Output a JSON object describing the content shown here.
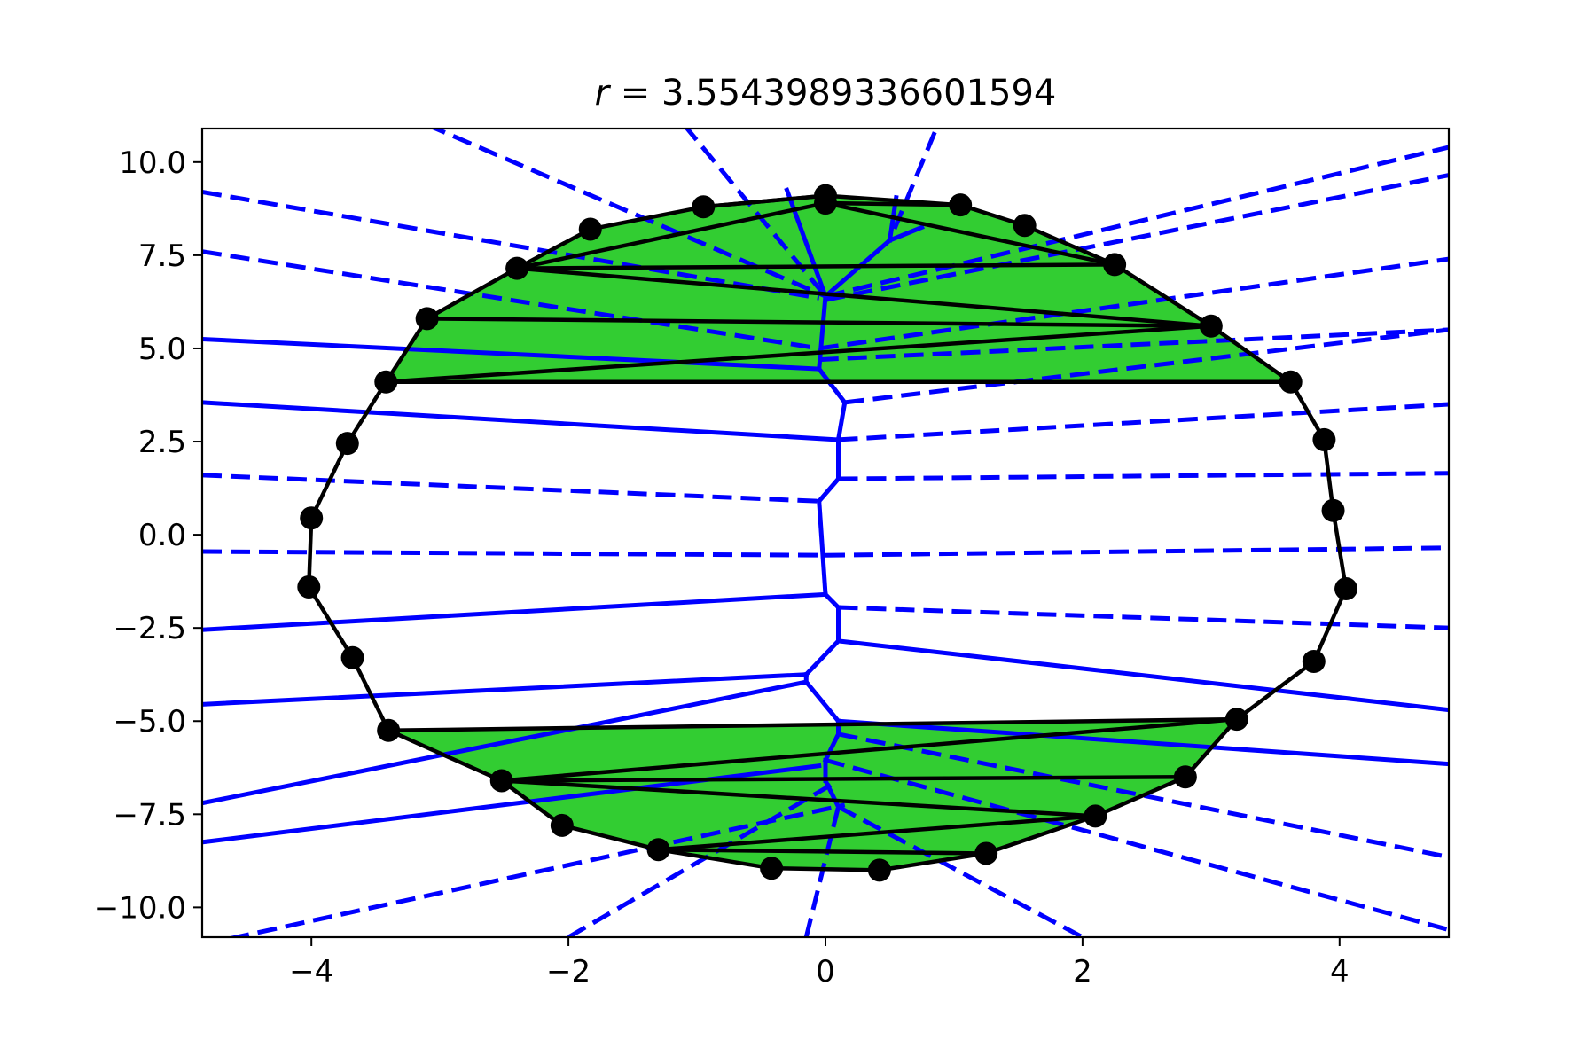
{
  "chart_data": {
    "type": "scatter",
    "title_prefix": "r",
    "title_value": "3.5543989336601594",
    "xlim": [
      -4.85,
      4.85
    ],
    "ylim": [
      -10.8,
      10.9
    ],
    "xticks": [
      -4,
      -2,
      0,
      2,
      4
    ],
    "xtick_labels": [
      "−4",
      "−2",
      "0",
      "2",
      "4"
    ],
    "yticks": [
      10.0,
      7.5,
      5.0,
      2.5,
      0.0,
      -2.5,
      -5.0,
      -7.5,
      -10.0
    ],
    "ytick_labels": [
      "10.0",
      "7.5",
      "5.0",
      "2.5",
      "0.0",
      "−2.5",
      "−5.0",
      "−7.5",
      "−10.0"
    ],
    "grid": false,
    "colors": {
      "points": "#000000",
      "voronoi": "#0000ff",
      "fill": "#32cd32"
    },
    "points": [
      [
        0.0,
        9.1
      ],
      [
        1.05,
        8.85
      ],
      [
        1.55,
        8.3
      ],
      [
        2.25,
        7.25
      ],
      [
        3.0,
        5.6
      ],
      [
        3.62,
        4.1
      ],
      [
        3.88,
        2.55
      ],
      [
        3.95,
        0.65
      ],
      [
        4.05,
        -1.45
      ],
      [
        3.8,
        -3.4
      ],
      [
        3.2,
        -4.95
      ],
      [
        2.8,
        -6.5
      ],
      [
        2.1,
        -7.55
      ],
      [
        1.25,
        -8.55
      ],
      [
        0.42,
        -9.0
      ],
      [
        -0.42,
        -8.95
      ],
      [
        -1.3,
        -8.45
      ],
      [
        -2.05,
        -7.8
      ],
      [
        -2.52,
        -6.6
      ],
      [
        -3.4,
        -5.25
      ],
      [
        -3.68,
        -3.3
      ],
      [
        -4.02,
        -1.4
      ],
      [
        -4.0,
        0.45
      ],
      [
        -3.72,
        2.45
      ],
      [
        -3.42,
        4.1
      ],
      [
        -3.1,
        5.8
      ],
      [
        -2.4,
        7.15
      ],
      [
        -1.83,
        8.2
      ],
      [
        -0.95,
        8.8
      ],
      [
        0.0,
        8.9
      ]
    ],
    "hull": [
      [
        0.0,
        9.1
      ],
      [
        1.05,
        8.85
      ],
      [
        1.55,
        8.3
      ],
      [
        2.25,
        7.25
      ],
      [
        3.0,
        5.6
      ],
      [
        3.62,
        4.1
      ],
      [
        3.88,
        2.55
      ],
      [
        3.95,
        0.65
      ],
      [
        4.05,
        -1.45
      ],
      [
        3.8,
        -3.4
      ],
      [
        3.2,
        -4.95
      ],
      [
        2.8,
        -6.5
      ],
      [
        2.1,
        -7.55
      ],
      [
        1.25,
        -8.55
      ],
      [
        0.42,
        -9.0
      ],
      [
        -0.42,
        -8.95
      ],
      [
        -1.3,
        -8.45
      ],
      [
        -2.05,
        -7.8
      ],
      [
        -2.52,
        -6.6
      ],
      [
        -3.4,
        -5.25
      ],
      [
        -3.68,
        -3.3
      ],
      [
        -4.02,
        -1.4
      ],
      [
        -4.0,
        0.45
      ],
      [
        -3.72,
        2.45
      ],
      [
        -3.42,
        4.1
      ],
      [
        -3.1,
        5.8
      ],
      [
        -2.4,
        7.15
      ],
      [
        -1.83,
        8.2
      ],
      [
        -0.95,
        8.8
      ],
      [
        0.0,
        9.1
      ]
    ],
    "green_regions": [
      [
        [
          -3.42,
          4.1
        ],
        [
          -3.1,
          5.8
        ],
        [
          -2.4,
          7.15
        ],
        [
          -1.83,
          8.2
        ],
        [
          -0.95,
          8.8
        ],
        [
          0.0,
          9.1
        ],
        [
          1.05,
          8.85
        ],
        [
          1.55,
          8.3
        ],
        [
          2.25,
          7.25
        ],
        [
          3.0,
          5.6
        ],
        [
          3.62,
          4.1
        ]
      ],
      [
        [
          -3.4,
          -5.25
        ],
        [
          -2.52,
          -6.6
        ],
        [
          -2.05,
          -7.8
        ],
        [
          -1.3,
          -8.45
        ],
        [
          -0.42,
          -8.95
        ],
        [
          0.42,
          -9.0
        ],
        [
          1.25,
          -8.55
        ],
        [
          2.1,
          -7.55
        ],
        [
          2.8,
          -6.5
        ],
        [
          3.2,
          -4.95
        ]
      ]
    ],
    "black_segments": [
      [
        [
          -3.42,
          4.1
        ],
        [
          3.62,
          4.1
        ]
      ],
      [
        [
          -3.42,
          4.1
        ],
        [
          3.0,
          5.6
        ]
      ],
      [
        [
          -3.1,
          5.8
        ],
        [
          3.0,
          5.6
        ]
      ],
      [
        [
          -2.4,
          7.15
        ],
        [
          3.0,
          5.6
        ]
      ],
      [
        [
          -2.4,
          7.15
        ],
        [
          2.25,
          7.25
        ]
      ],
      [
        [
          -2.4,
          7.15
        ],
        [
          0.0,
          8.9
        ]
      ],
      [
        [
          0.0,
          8.9
        ],
        [
          2.25,
          7.25
        ]
      ],
      [
        [
          -0.95,
          8.8
        ],
        [
          0.0,
          9.1
        ]
      ],
      [
        [
          0.0,
          8.9
        ],
        [
          1.05,
          8.85
        ]
      ],
      [
        [
          -3.4,
          -5.25
        ],
        [
          3.2,
          -4.95
        ]
      ],
      [
        [
          -2.52,
          -6.6
        ],
        [
          3.2,
          -4.95
        ]
      ],
      [
        [
          -2.52,
          -6.6
        ],
        [
          2.8,
          -6.5
        ]
      ],
      [
        [
          -2.52,
          -6.6
        ],
        [
          2.1,
          -7.55
        ]
      ],
      [
        [
          -1.3,
          -8.45
        ],
        [
          2.1,
          -7.55
        ]
      ],
      [
        [
          -1.3,
          -8.45
        ],
        [
          1.25,
          -8.55
        ]
      ]
    ],
    "voronoi_solid": [
      [
        [
          -4.85,
          5.25
        ],
        [
          -0.05,
          4.45
        ]
      ],
      [
        [
          -4.85,
          3.55
        ],
        [
          0.1,
          2.55
        ]
      ],
      [
        [
          -4.85,
          -2.55
        ],
        [
          0.0,
          -1.6
        ]
      ],
      [
        [
          -4.85,
          -4.55
        ],
        [
          -0.15,
          -3.75
        ]
      ],
      [
        [
          -4.85,
          -7.2
        ],
        [
          -0.15,
          -3.95
        ]
      ],
      [
        [
          -4.85,
          -8.25
        ],
        [
          -0.05,
          -6.2
        ]
      ],
      [
        [
          0.1,
          -2.85
        ],
        [
          4.85,
          -4.7
        ]
      ],
      [
        [
          0.1,
          -5.0
        ],
        [
          4.85,
          -6.15
        ]
      ],
      [
        [
          0.0,
          6.4
        ],
        [
          -0.05,
          4.45
        ]
      ],
      [
        [
          -0.05,
          4.45
        ],
        [
          0.15,
          3.55
        ]
      ],
      [
        [
          0.15,
          3.55
        ],
        [
          0.1,
          2.55
        ]
      ],
      [
        [
          0.1,
          2.55
        ],
        [
          0.1,
          1.5
        ]
      ],
      [
        [
          0.1,
          1.5
        ],
        [
          -0.05,
          0.9
        ]
      ],
      [
        [
          -0.05,
          0.9
        ],
        [
          0.0,
          -1.6
        ]
      ],
      [
        [
          0.0,
          -1.6
        ],
        [
          0.1,
          -1.95
        ]
      ],
      [
        [
          0.1,
          -1.95
        ],
        [
          0.1,
          -2.85
        ]
      ],
      [
        [
          0.1,
          -2.85
        ],
        [
          -0.15,
          -3.75
        ]
      ],
      [
        [
          -0.15,
          -3.75
        ],
        [
          -0.15,
          -3.95
        ]
      ],
      [
        [
          -0.15,
          -3.95
        ],
        [
          0.1,
          -5.0
        ]
      ],
      [
        [
          0.1,
          -5.0
        ],
        [
          0.1,
          -5.35
        ]
      ],
      [
        [
          0.1,
          -5.35
        ],
        [
          0.0,
          -6.05
        ]
      ],
      [
        [
          0.0,
          -6.05
        ],
        [
          0.0,
          -6.6
        ]
      ],
      [
        [
          0.0,
          -6.6
        ],
        [
          0.1,
          -7.3
        ]
      ],
      [
        [
          0.0,
          6.4
        ],
        [
          -0.3,
          9.25
        ]
      ],
      [
        [
          0.0,
          6.4
        ],
        [
          0.5,
          7.9
        ]
      ],
      [
        [
          0.5,
          7.9
        ],
        [
          0.55,
          9.05
        ]
      ],
      [
        [
          0.5,
          7.9
        ],
        [
          0.75,
          8.25
        ]
      ]
    ],
    "voronoi_dashed": [
      [
        [
          -4.85,
          9.2
        ],
        [
          -0.05,
          6.35
        ]
      ],
      [
        [
          -4.85,
          7.6
        ],
        [
          -0.05,
          5.0
        ]
      ],
      [
        [
          -4.85,
          1.6
        ],
        [
          -0.05,
          0.9
        ]
      ],
      [
        [
          -4.85,
          -0.45
        ],
        [
          0.0,
          -0.55
        ]
      ],
      [
        [
          -4.85,
          -11.0
        ],
        [
          0.15,
          -7.25
        ]
      ],
      [
        [
          -2.0,
          -10.8
        ],
        [
          0.1,
          -6.6
        ]
      ],
      [
        [
          -0.15,
          -10.8
        ],
        [
          0.1,
          -7.3
        ]
      ],
      [
        [
          -3.1,
          11.0
        ],
        [
          0.0,
          6.4
        ]
      ],
      [
        [
          -1.1,
          11.0
        ],
        [
          0.0,
          6.4
        ]
      ],
      [
        [
          0.85,
          10.8
        ],
        [
          0.5,
          7.9
        ]
      ],
      [
        [
          0.0,
          6.4
        ],
        [
          4.85,
          10.4
        ]
      ],
      [
        [
          0.0,
          6.3
        ],
        [
          4.85,
          9.65
        ]
      ],
      [
        [
          -0.05,
          5.0
        ],
        [
          4.85,
          7.4
        ]
      ],
      [
        [
          -0.05,
          4.7
        ],
        [
          4.85,
          5.5
        ]
      ],
      [
        [
          0.15,
          3.55
        ],
        [
          4.85,
          5.5
        ]
      ],
      [
        [
          0.1,
          2.55
        ],
        [
          4.85,
          3.5
        ]
      ],
      [
        [
          0.1,
          1.5
        ],
        [
          4.85,
          1.65
        ]
      ],
      [
        [
          0.0,
          -0.55
        ],
        [
          4.85,
          -0.35
        ]
      ],
      [
        [
          0.1,
          -1.95
        ],
        [
          4.85,
          -2.5
        ]
      ],
      [
        [
          0.1,
          -5.35
        ],
        [
          4.85,
          -8.65
        ]
      ],
      [
        [
          0.0,
          -6.05
        ],
        [
          4.85,
          -10.6
        ]
      ],
      [
        [
          0.1,
          -7.3
        ],
        [
          2.0,
          -10.8
        ]
      ]
    ]
  }
}
